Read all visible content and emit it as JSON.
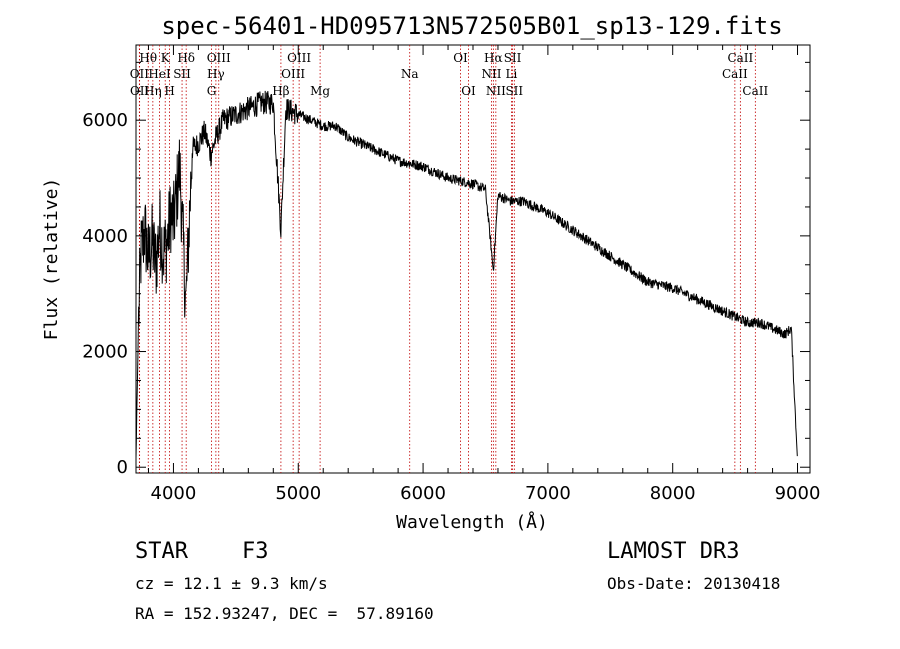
{
  "chart_data": {
    "type": "line",
    "title": "spec-56401-HD095713N572505B01_sp13-129.fits",
    "xlabel": "Wavelength (Å)",
    "ylabel": "Flux (relative)",
    "xlim": [
      3700,
      9100
    ],
    "ylim": [
      -100,
      7300
    ],
    "x_ticks": [
      4000,
      5000,
      6000,
      7000,
      8000,
      9000
    ],
    "y_ticks": [
      0,
      2000,
      4000,
      6000
    ],
    "spectrum_anchor_points": {
      "wavelength": [
        3700,
        3720,
        3740,
        3770,
        3800,
        3830,
        3860,
        3890,
        3920,
        3950,
        3980,
        4000,
        4050,
        4100,
        4150,
        4200,
        4250,
        4300,
        4340,
        4400,
        4500,
        4600,
        4700,
        4800,
        4861,
        4900,
        5000,
        5100,
        5200,
        5300,
        5400,
        5500,
        5600,
        5800,
        6000,
        6200,
        6400,
        6500,
        6563,
        6600,
        6700,
        6800,
        7000,
        7200,
        7400,
        7600,
        7800,
        8000,
        8200,
        8400,
        8500,
        8600,
        8700,
        8800,
        8900,
        8950,
        9000
      ],
      "flux": [
        150,
        2500,
        3700,
        4100,
        3600,
        3900,
        3500,
        4200,
        3700,
        3900,
        4400,
        4200,
        5200,
        2800,
        5500,
        5600,
        5800,
        5400,
        5700,
        6000,
        6100,
        6200,
        6300,
        6300,
        4100,
        6200,
        6100,
        6000,
        5900,
        5900,
        5700,
        5600,
        5500,
        5300,
        5200,
        5000,
        4900,
        4800,
        3400,
        4700,
        4600,
        4600,
        4400,
        4100,
        3800,
        3500,
        3200,
        3100,
        2900,
        2700,
        2600,
        2500,
        2500,
        2400,
        2300,
        2400,
        100
      ]
    },
    "lines": [
      {
        "name": "Hθ",
        "wavelength": 3798,
        "row": 1
      },
      {
        "name": "OII",
        "wavelength": 3727,
        "row": 2
      },
      {
        "name": "OII",
        "wavelength": 3729,
        "row": 3
      },
      {
        "name": "Hη",
        "wavelength": 3835,
        "row": 3
      },
      {
        "name": "K",
        "wavelength": 3934,
        "row": 1
      },
      {
        "name": "HeI",
        "wavelength": 3889,
        "row": 2
      },
      {
        "name": "H",
        "wavelength": 3969,
        "row": 3
      },
      {
        "name": "SII",
        "wavelength": 4069,
        "row": 2
      },
      {
        "name": "Hδ",
        "wavelength": 4102,
        "row": 1
      },
      {
        "name": "OIII",
        "wavelength": 4363,
        "row": 1
      },
      {
        "name": "Hγ",
        "wavelength": 4340,
        "row": 2
      },
      {
        "name": "G",
        "wavelength": 4305,
        "row": 3
      },
      {
        "name": "Hβ",
        "wavelength": 4861,
        "row": 3
      },
      {
        "name": "OIII",
        "wavelength": 5007,
        "row": 1
      },
      {
        "name": "OIII",
        "wavelength": 4959,
        "row": 2
      },
      {
        "name": "Mg",
        "wavelength": 5175,
        "row": 3
      },
      {
        "name": "Na",
        "wavelength": 5893,
        "row": 2
      },
      {
        "name": "OI",
        "wavelength": 6300,
        "row": 1
      },
      {
        "name": "OI",
        "wavelength": 6364,
        "row": 3
      },
      {
        "name": "Hα",
        "wavelength": 6563,
        "row": 1
      },
      {
        "name": "NII",
        "wavelength": 6548,
        "row": 2
      },
      {
        "name": "NII",
        "wavelength": 6583,
        "row": 3
      },
      {
        "name": "SII",
        "wavelength": 6717,
        "row": 1
      },
      {
        "name": "Li",
        "wavelength": 6708,
        "row": 2
      },
      {
        "name": "SII",
        "wavelength": 6731,
        "row": 3
      },
      {
        "name": "CaII",
        "wavelength": 8542,
        "row": 1
      },
      {
        "name": "CaII",
        "wavelength": 8498,
        "row": 2
      },
      {
        "name": "CaII",
        "wavelength": 8662,
        "row": 3
      }
    ]
  },
  "info": {
    "object_class": "STAR",
    "subclass": "F3",
    "survey": "LAMOST DR3",
    "cz_line": "cz = 12.1 ± 9.3 km/s",
    "obs_date_line": "Obs-Date: 20130418",
    "radec_line": "RA = 152.93247, DEC =  57.89160"
  },
  "colors": {
    "spectrum": "#000000",
    "line_markers": "#c00000"
  }
}
